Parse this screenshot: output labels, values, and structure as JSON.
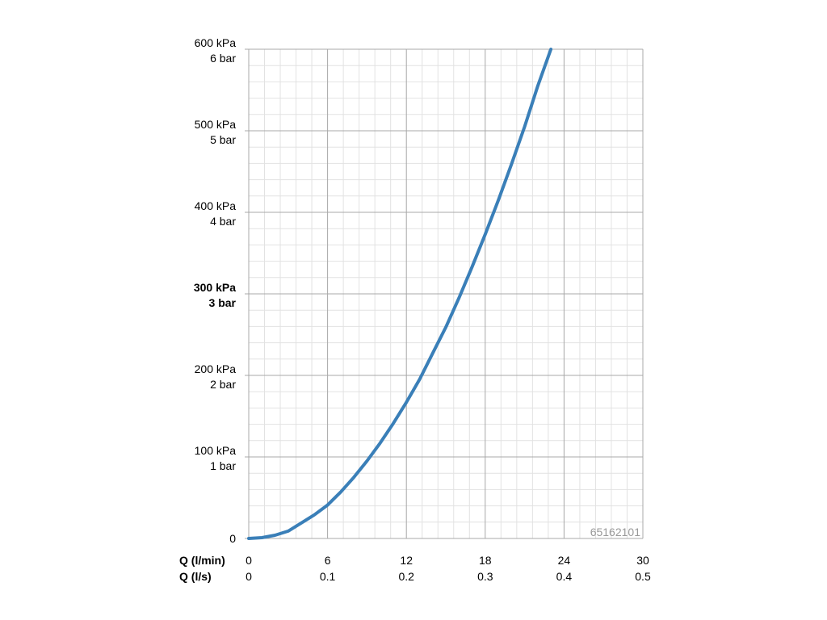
{
  "chart_data": {
    "type": "line",
    "title": "",
    "code_label": "65162101",
    "x_axes": [
      {
        "label": "Q (l/min)",
        "ticks": [
          "0",
          "6",
          "12",
          "18",
          "24",
          "30"
        ]
      },
      {
        "label": "Q (l/s)",
        "ticks": [
          "0",
          "0.1",
          "0.2",
          "0.3",
          "0.4",
          "0.5"
        ]
      }
    ],
    "y_ticks": [
      {
        "value": 0,
        "lines": [
          "0"
        ],
        "bold": false
      },
      {
        "value": 100,
        "lines": [
          "100 kPa",
          "1 bar"
        ],
        "bold": false
      },
      {
        "value": 200,
        "lines": [
          "200 kPa",
          "2 bar"
        ],
        "bold": false
      },
      {
        "value": 300,
        "lines": [
          "300 kPa",
          "3 bar"
        ],
        "bold": true
      },
      {
        "value": 400,
        "lines": [
          "400 kPa",
          "4 bar"
        ],
        "bold": false
      },
      {
        "value": 500,
        "lines": [
          "500 kPa",
          "5 bar"
        ],
        "bold": false
      },
      {
        "value": 600,
        "lines": [
          "600 kPa",
          "6 bar"
        ],
        "bold": false
      }
    ],
    "xlim": [
      0,
      30
    ],
    "ylim": [
      0,
      600
    ],
    "grid": true,
    "series": [
      {
        "color": "#3a7fb8",
        "x": [
          0,
          1,
          2,
          3,
          4,
          5,
          6,
          7,
          8,
          9,
          10,
          11,
          12,
          13,
          14,
          15,
          16,
          17,
          18,
          19,
          20,
          21,
          22,
          23
        ],
        "y": [
          0,
          1,
          4,
          9,
          19,
          29,
          41,
          57,
          75,
          95,
          117,
          141,
          167,
          195,
          227,
          259,
          295,
          333,
          373,
          415,
          459,
          505,
          555,
          604
        ]
      }
    ]
  }
}
